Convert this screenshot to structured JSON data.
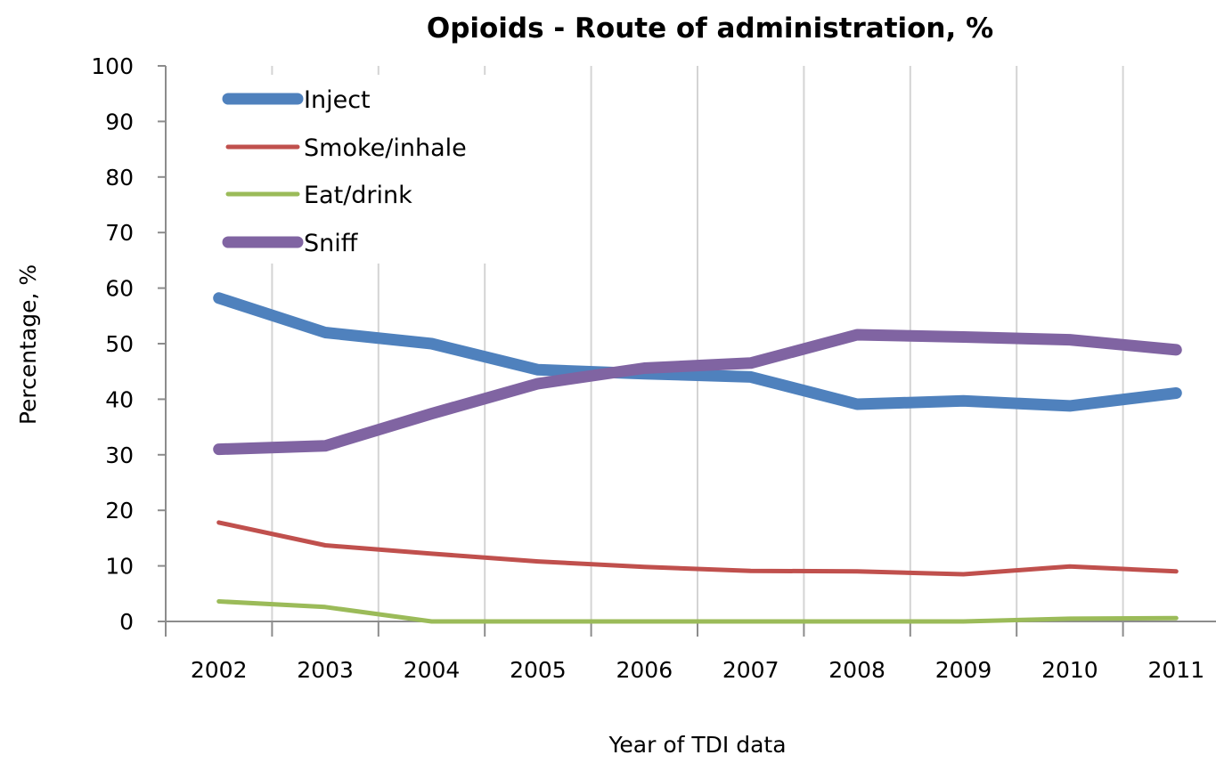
{
  "chart_data": {
    "type": "line",
    "title": "Opioids - Route of administration, %",
    "xlabel": "Year of TDI data",
    "ylabel": "Percentage, %",
    "categories": [
      "2002",
      "2003",
      "2004",
      "2005",
      "2006",
      "2007",
      "2008",
      "2009",
      "2010",
      "2011"
    ],
    "ylim": [
      0,
      100
    ],
    "yticks": [
      0,
      10,
      20,
      30,
      40,
      50,
      60,
      70,
      80,
      90,
      100
    ],
    "grid": "vertical",
    "legend_position": "top-left",
    "series": [
      {
        "name": "Inject",
        "color": "#4F81BD",
        "values": [
          58.2,
          52.0,
          50.0,
          45.3,
          44.6,
          44.0,
          39.1,
          39.7,
          38.8,
          41.1
        ]
      },
      {
        "name": "Smoke/inhale",
        "color": "#C0504D",
        "values": [
          17.8,
          13.7,
          12.2,
          10.8,
          9.8,
          9.1,
          9.0,
          8.5,
          9.9,
          9.0
        ]
      },
      {
        "name": "Eat/drink",
        "color": "#9BBB59",
        "values": [
          3.6,
          2.6,
          0.0,
          0.0,
          0.0,
          0.0,
          0.0,
          0.0,
          0.5,
          0.6
        ]
      },
      {
        "name": "Sniff",
        "color": "#8064A2",
        "values": [
          31.0,
          31.6,
          37.4,
          42.8,
          45.6,
          46.5,
          51.6,
          51.2,
          50.7,
          48.9
        ]
      }
    ]
  }
}
